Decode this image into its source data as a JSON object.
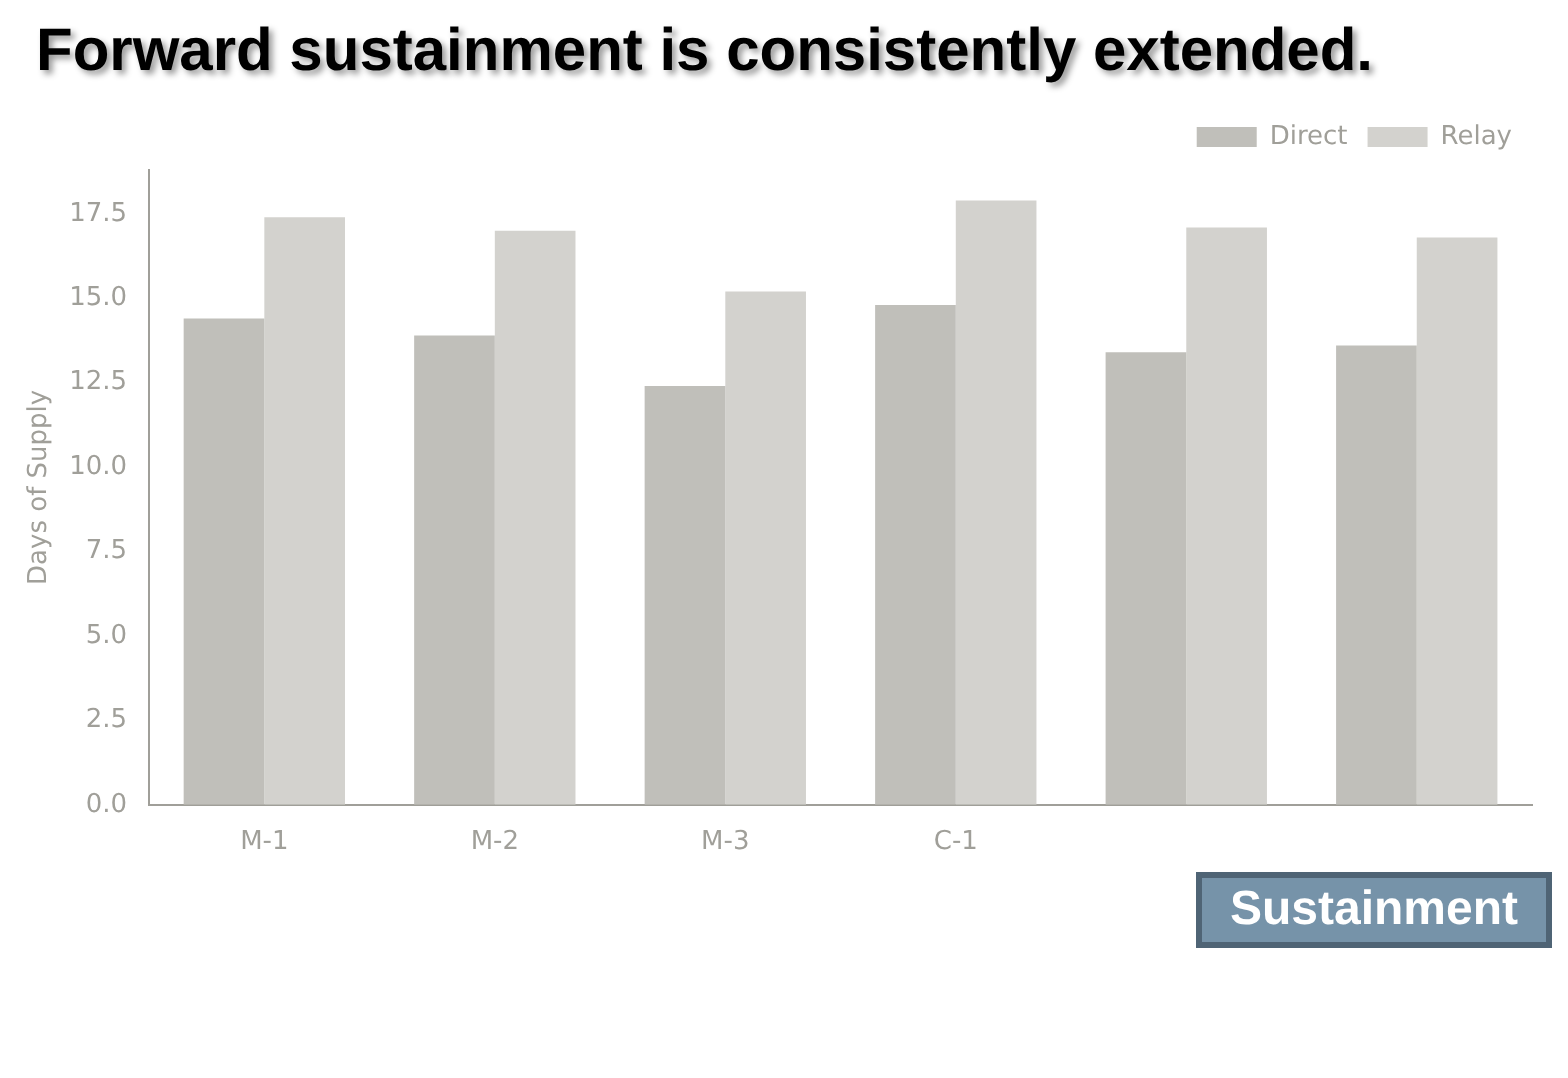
{
  "chart_data": {
    "type": "bar",
    "ylabel": "Days of Supply",
    "categories": [
      "M-1",
      "M-2",
      "M-3",
      "C-1",
      null,
      null
    ],
    "series": [
      {
        "name": "Direct",
        "color": "#c0bfba",
        "values": [
          14.4,
          13.9,
          12.4,
          14.8,
          13.4,
          13.6
        ]
      },
      {
        "name": "Relay",
        "color": "#d3d2ce",
        "values": [
          17.4,
          17.0,
          15.2,
          17.9,
          17.1,
          16.8
        ]
      }
    ],
    "ylim": [
      0,
      18.8
    ],
    "yticks": [
      {
        "value": 0,
        "label": "0.0"
      },
      {
        "value": 2.5,
        "label": "2.5"
      },
      {
        "value": 5,
        "label": "5.0"
      },
      {
        "value": 7.5,
        "label": "7.5"
      },
      {
        "value": 10,
        "label": "10.0"
      },
      {
        "value": 12.5,
        "label": "12.5"
      },
      {
        "value": 15,
        "label": "15.0"
      },
      {
        "value": 17.5,
        "label": "17.5"
      }
    ],
    "grid": false,
    "legend": "top right",
    "annotations": [
      "Forward sustainment is consistently extended.",
      "Sustainment"
    ]
  }
}
